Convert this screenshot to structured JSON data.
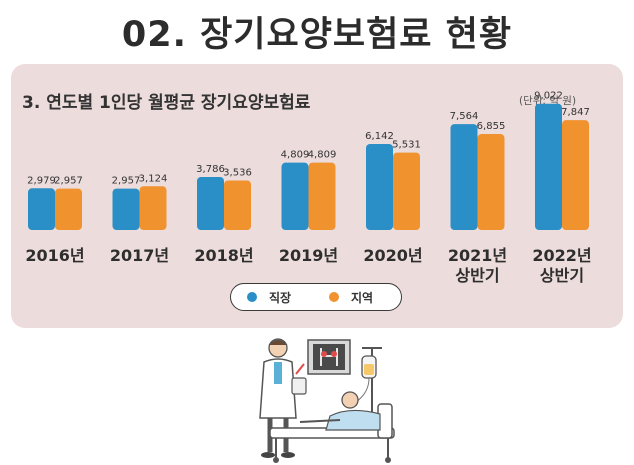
{
  "page": {
    "title": "02. 장기요양보험료 현황"
  },
  "chart_data": {
    "type": "bar",
    "title": "3. 연도별 1인당 월평균 장기요양보험료",
    "unit": "(단위: 억 원)",
    "categories": [
      [
        "2016년"
      ],
      [
        "2017년"
      ],
      [
        "2018년"
      ],
      [
        "2019년"
      ],
      [
        "2020년"
      ],
      [
        "2021년",
        "상반기"
      ],
      [
        "2022년",
        "상반기"
      ]
    ],
    "series": [
      {
        "name": "직장",
        "color": "#2a8fc6",
        "values": [
          2979,
          2957,
          3786,
          4809,
          6142,
          7564,
          9022
        ],
        "labels": [
          "2,979",
          "2,957",
          "3,786",
          "4,809",
          "6,142",
          "7,564",
          "9,022"
        ]
      },
      {
        "name": "지역",
        "color": "#f0922e",
        "values": [
          2957,
          3124,
          3536,
          4809,
          5531,
          6855,
          7847
        ],
        "labels": [
          "2,957",
          "3,124",
          "3,536",
          "4,809",
          "5,531",
          "6,855",
          "7,847"
        ]
      }
    ],
    "ylim": [
      0,
      10000
    ],
    "grid": false,
    "legend_position": "bottom-center"
  }
}
